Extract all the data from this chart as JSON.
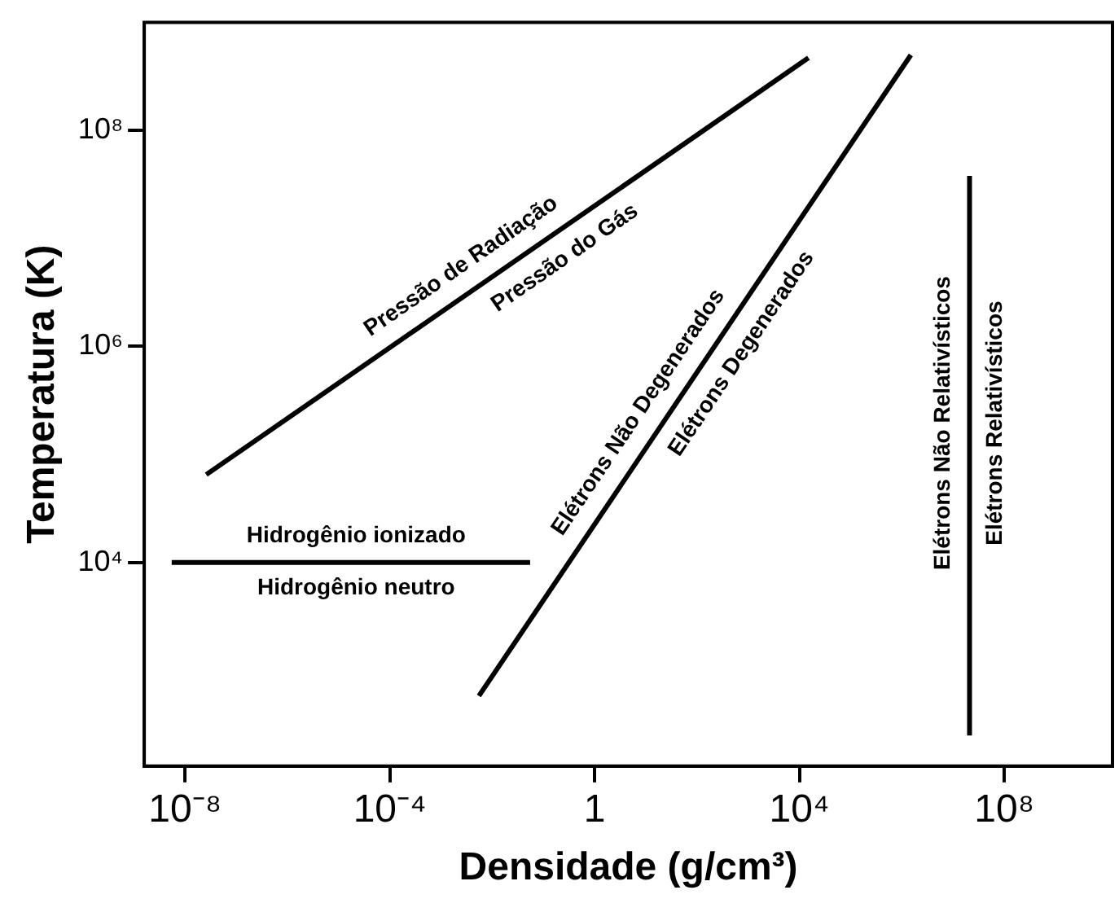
{
  "chart_data": {
    "type": "line",
    "xlabel": "Densidade (g/cm³)",
    "ylabel": "Temperatura (K)",
    "log": "xy",
    "marker": "none",
    "line_style": "solid",
    "grid": false,
    "legend": false,
    "xlim": [
      1.6e-09,
      13000000000.0
    ],
    "ylim": [
      130,
      1000000000.0
    ],
    "xticks": [
      {
        "value": 1e-08,
        "label": "10⁻⁸"
      },
      {
        "value": 0.0001,
        "label": "10⁻⁴"
      },
      1,
      {
        "value": 10000.0,
        "label": "10⁴"
      },
      {
        "value": 100000000.0,
        "label": "10⁸"
      }
    ],
    "yticks": [
      {
        "value": 10000.0,
        "label": "10⁴"
      },
      {
        "value": 1000000.0,
        "label": "10⁶"
      },
      {
        "value": 100000000.0,
        "label": "10⁸"
      }
    ],
    "series": [
      {
        "color": "#000000",
        "x": [
          2.6e-08,
          15000.0
        ],
        "values": [
          65000.0,
          470000000.0
        ]
      },
      {
        "color": "#000000",
        "x": [
          5.5e-09,
          0.055
        ],
        "values": [
          10000.0,
          10000.0
        ]
      },
      {
        "color": "#000000",
        "x": [
          0.0055,
          1500000.0
        ],
        "values": [
          580,
          500000000.0
        ]
      },
      {
        "color": "#000000",
        "x": [
          21000000.0,
          21000000.0
        ],
        "values": [
          250,
          38000000.0
        ]
      }
    ],
    "annotations": [
      {
        "text": "Pressão de Radiação",
        "x": 0.0048,
        "y": 3500000.0
      },
      {
        "text": "Pressão do Gás",
        "x": 0.135,
        "y": 10400000.0
      },
      {
        "text": "Hidrogênio ionizado",
        "x": 2.2e-05,
        "y": 10000.0
      },
      {
        "text": "Hidrogênio neutro",
        "x": 2.2e-05,
        "y": 10000.0
      },
      {
        "text": "Elétrons Não Degenerados",
        "x": 19,
        "y": 180000.0
      },
      {
        "text": "Elétrons Degenerados",
        "x": 280,
        "y": 1170000.0
      },
      {
        "text": "Elétrons Não Relativísticos",
        "x": 21000000.0,
        "y": 195000.0
      },
      {
        "text": "Elétrons Relativísticos",
        "x": 21000000.0,
        "y": 195000.0
      }
    ]
  }
}
